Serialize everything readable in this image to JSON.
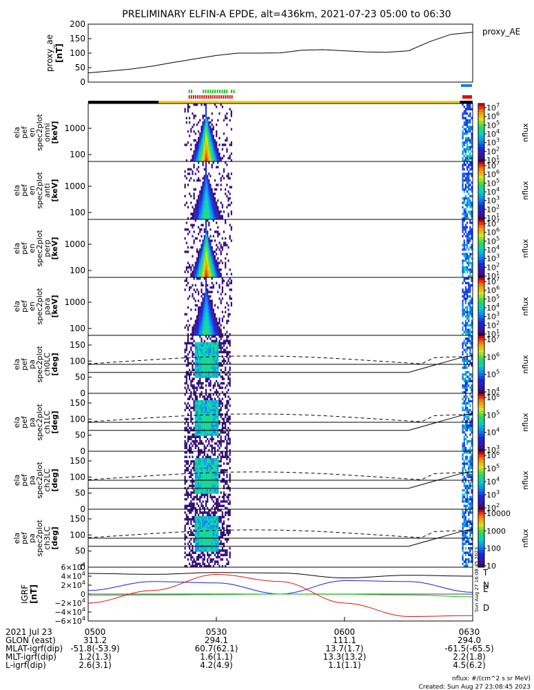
{
  "title": "PRELIMINARY ELFIN-A EPDE, alt=436km, 2021-07-23 05:00 to 06:30",
  "colors": {
    "yellow": "#f2d020",
    "black": "#000000",
    "green": "#14c814",
    "red": "#e01010",
    "blue": "#1880e0",
    "bfield_T": "#000000",
    "bfield_N": "#1020e0",
    "bfield_E": "#10c010",
    "bfield_D": "#e01010"
  },
  "chart_data": [
    {
      "type": "line",
      "panel": "proxy_ae",
      "ylabel_lines": [
        "proxy_ae",
        "[nT]"
      ],
      "legend": "proxy_AE",
      "ylim": [
        0,
        200
      ],
      "yticks": [
        "200",
        "150",
        "100",
        "50",
        "0"
      ],
      "x": [
        0,
        5,
        10,
        15,
        20,
        25,
        30,
        35,
        40,
        45,
        50,
        55,
        60,
        65,
        70,
        75,
        80,
        85,
        90
      ],
      "y": [
        32,
        38,
        45,
        55,
        68,
        80,
        92,
        100,
        100,
        101,
        110,
        112,
        108,
        104,
        103,
        108,
        140,
        165,
        172
      ]
    },
    {
      "type": "heatmap",
      "panel": "omni",
      "ylabel_lines": [
        "ela",
        "pef",
        "en",
        "spec2plot",
        "omni",
        "[keV]"
      ],
      "yticks": [
        "1000",
        "100"
      ],
      "colorbar": {
        "label": "nflux",
        "ticks": [
          "10^7",
          "10^6",
          "10^5",
          "10^4",
          "10^3",
          "10^2",
          "10^1"
        ]
      }
    },
    {
      "type": "heatmap",
      "panel": "anti",
      "ylabel_lines": [
        "ela",
        "pef",
        "en",
        "spec2plot",
        "anti",
        "[keV]"
      ],
      "yticks": [
        "1000",
        "100"
      ],
      "colorbar": {
        "label": "nflux",
        "ticks": [
          "10^7",
          "10^6",
          "10^5",
          "10^4",
          "10^3",
          "10^2",
          "10^1"
        ]
      }
    },
    {
      "type": "heatmap",
      "panel": "perp",
      "ylabel_lines": [
        "ela",
        "pef",
        "en",
        "spec2plot",
        "perp",
        "[keV]"
      ],
      "yticks": [
        "1000",
        "100"
      ],
      "colorbar": {
        "label": "nflux",
        "ticks": [
          "10^7",
          "10^6",
          "10^5",
          "10^4",
          "10^3",
          "10^2",
          "10^1"
        ]
      }
    },
    {
      "type": "heatmap",
      "panel": "para",
      "ylabel_lines": [
        "ela",
        "pef",
        "en",
        "spec2plot",
        "para",
        "[keV]"
      ],
      "yticks": [
        "1000",
        "100"
      ],
      "colorbar": {
        "label": "nflux",
        "ticks": [
          "10^7",
          "10^6",
          "10^5",
          "10^4",
          "10^3",
          "10^2",
          "10^1"
        ]
      }
    },
    {
      "type": "heatmap",
      "panel": "ch0LC",
      "ylabel_lines": [
        "ela",
        "pef",
        "pa",
        "spec2plot",
        "ch0LC",
        "[deg]"
      ],
      "yticks": [
        "150",
        "100",
        "50",
        "0"
      ],
      "colorbar": {
        "label": "nflux",
        "ticks": [
          "10^7",
          "10^6",
          "10^5",
          "10^4"
        ]
      }
    },
    {
      "type": "heatmap",
      "panel": "ch1LC",
      "ylabel_lines": [
        "ela",
        "pef",
        "pa",
        "spec2plot",
        "ch1LC",
        "[deg]"
      ],
      "yticks": [
        "150",
        "100",
        "50",
        "0"
      ],
      "colorbar": {
        "label": "nflux",
        "ticks": [
          "10^6",
          "10^5",
          "10^4",
          "10^3"
        ]
      }
    },
    {
      "type": "heatmap",
      "panel": "ch2LC",
      "ylabel_lines": [
        "ela",
        "pef",
        "pa",
        "spec2plot",
        "ch2LC",
        "[deg]"
      ],
      "yticks": [
        "150",
        "100",
        "50",
        "0"
      ],
      "colorbar": {
        "label": "nflux",
        "ticks": [
          "10^6",
          "10^5",
          "10^4",
          "10^3",
          "10^2"
        ]
      }
    },
    {
      "type": "heatmap",
      "panel": "ch3LC",
      "ylabel_lines": [
        "ela",
        "pef",
        "pa",
        "spec2plot",
        "ch3LC",
        "[deg]"
      ],
      "yticks": [
        "150",
        "100",
        "50",
        "0"
      ],
      "colorbar": {
        "label": "nflux",
        "ticks": [
          "10000",
          "1000",
          "100",
          "10"
        ]
      }
    },
    {
      "type": "line",
      "panel": "bfield",
      "ylabel_lines": [
        "IGRF",
        "[nT]"
      ],
      "ylim": [
        -60000,
        60000
      ],
      "yticks": [
        "6×10^4",
        "4×10^4",
        "2×10^4",
        "0",
        "−2×10^4",
        "−4×10^4",
        "−6×10^4"
      ],
      "legend": [
        "T",
        "N",
        "E",
        "D"
      ],
      "series": [
        {
          "name": "T",
          "x": [
            0,
            15,
            30,
            45,
            60,
            75,
            90
          ],
          "y": [
            46000,
            44000,
            48000,
            47000,
            36000,
            42000,
            40000
          ]
        },
        {
          "name": "N",
          "x": [
            0,
            15,
            30,
            45,
            60,
            75,
            90
          ],
          "y": [
            8000,
            28000,
            25000,
            0,
            30000,
            28000,
            4000
          ]
        },
        {
          "name": "E",
          "x": [
            0,
            15,
            30,
            45,
            60,
            75,
            90
          ],
          "y": [
            -3000,
            -2000,
            -1000,
            0,
            -500,
            -2000,
            -6000
          ]
        },
        {
          "name": "D",
          "x": [
            0,
            15,
            30,
            45,
            60,
            75,
            90
          ],
          "y": [
            -20000,
            8000,
            44000,
            28000,
            -20000,
            -50000,
            -48000
          ]
        }
      ]
    }
  ],
  "x_axis": {
    "rows": [
      {
        "label": "2021 Jul 23",
        "values": [
          "0500",
          "0530",
          "0600",
          "0630"
        ]
      },
      {
        "label": "GLON (east)",
        "values": [
          "311.2",
          "294.1",
          "111.1",
          "294.0"
        ]
      },
      {
        "label": "MLAT-igrf(dip)",
        "values": [
          "-51.8(-53.9)",
          "60.7(62.1)",
          "13.7(1.7)",
          "-61.5(-65.5)"
        ]
      },
      {
        "label": "MLT-igrf(dip)",
        "values": [
          "1.2(1.3)",
          "1.6(1.1)",
          "13.3(13.2)",
          "2.2(1.8)"
        ]
      },
      {
        "label": "L-igrf(dip)",
        "values": [
          "2.6(3.1)",
          "4.2(4.9)",
          "1.1(1.1)",
          "4.5(6.2)"
        ]
      }
    ]
  },
  "side_stamp": "Sun Aug 27 16:08:45 2023",
  "footer": {
    "units": "nflux: #/(cm^2 s sr MeV)",
    "created": "Created: Sun Aug 27 23:08:45 2023"
  }
}
